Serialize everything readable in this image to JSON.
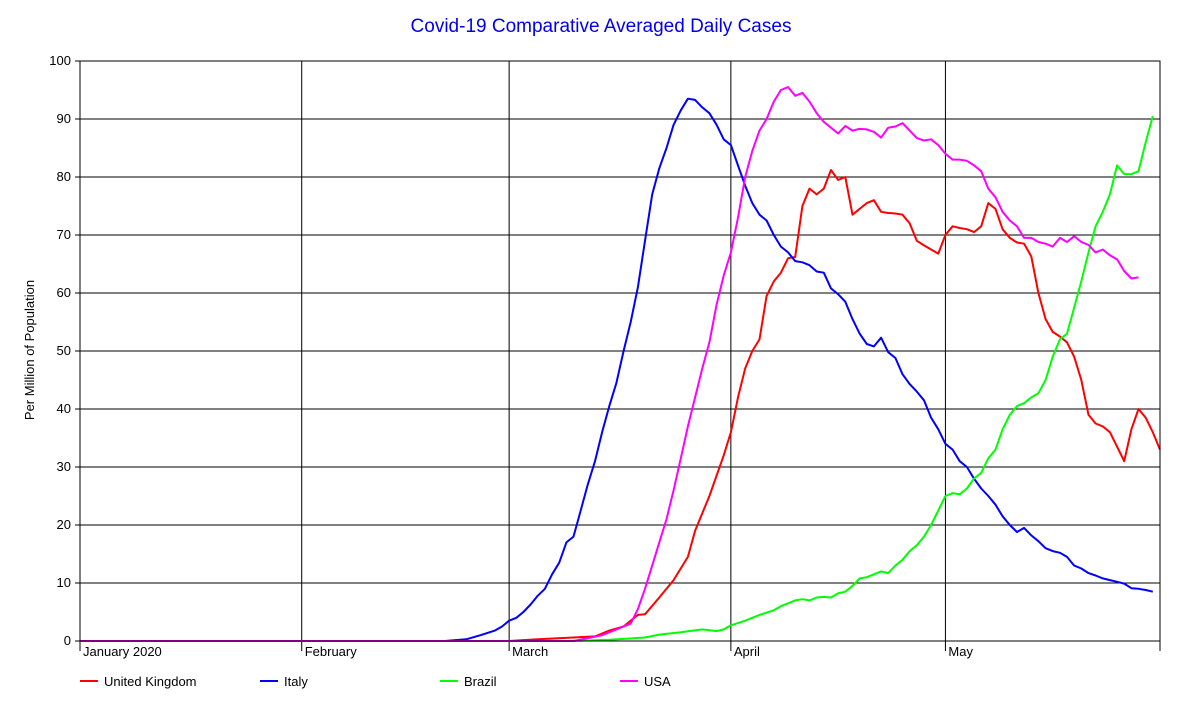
{
  "chart_data": {
    "type": "line",
    "title": "Covid-19 Comparative Averaged Daily Cases",
    "ylabel": "Per Million of Population",
    "xlabel": "",
    "ylim": [
      0,
      100
    ],
    "yticks": [
      0,
      10,
      20,
      30,
      40,
      50,
      60,
      70,
      80,
      90,
      100
    ],
    "x_axis": {
      "unit": "day",
      "start": "2020-01-01",
      "end": "2020-05-31",
      "month_labels": [
        {
          "label": "January 2020",
          "day": 1
        },
        {
          "label": "February",
          "day": 32
        },
        {
          "label": "March",
          "day": 61
        },
        {
          "label": "April",
          "day": 92
        },
        {
          "label": "May",
          "day": 122
        }
      ]
    },
    "grid": true,
    "legend_position": "bottom",
    "series": [
      {
        "name": "United Kingdom",
        "color": "#ff0000",
        "points": [
          [
            1,
            0
          ],
          [
            61,
            0
          ],
          [
            65,
            0.3
          ],
          [
            70,
            0.6
          ],
          [
            73,
            0.8
          ],
          [
            75,
            1.8
          ],
          [
            77,
            2.5
          ],
          [
            78,
            3.5
          ],
          [
            79,
            4.5
          ],
          [
            80,
            4.6
          ],
          [
            82,
            7.5
          ],
          [
            84,
            10.5
          ],
          [
            86,
            14.5
          ],
          [
            87,
            19
          ],
          [
            89,
            25
          ],
          [
            91,
            32
          ],
          [
            92,
            36
          ],
          [
            93,
            42
          ],
          [
            94,
            47
          ],
          [
            95,
            50
          ],
          [
            96,
            52
          ],
          [
            97,
            59.5
          ],
          [
            98,
            62
          ],
          [
            99,
            63.5
          ],
          [
            100,
            66
          ],
          [
            101,
            66.2
          ],
          [
            102,
            75
          ],
          [
            103,
            78
          ],
          [
            104,
            77
          ],
          [
            105,
            78
          ],
          [
            106,
            81.2
          ],
          [
            107,
            79.5
          ],
          [
            108,
            80
          ],
          [
            109,
            73.5
          ],
          [
            110,
            74.5
          ],
          [
            111,
            75.5
          ],
          [
            112,
            76
          ],
          [
            113,
            74
          ],
          [
            114,
            73.8
          ],
          [
            115,
            73.7
          ],
          [
            116,
            73.5
          ],
          [
            117,
            72
          ],
          [
            118,
            69
          ],
          [
            119,
            68.2
          ],
          [
            120,
            67.5
          ],
          [
            121,
            66.8
          ],
          [
            122,
            70
          ],
          [
            123,
            71.5
          ],
          [
            124,
            71.2
          ],
          [
            125,
            71
          ],
          [
            126,
            70.5
          ],
          [
            127,
            71.5
          ],
          [
            128,
            75.5
          ],
          [
            129,
            74.5
          ],
          [
            130,
            71
          ],
          [
            131,
            69.5
          ],
          [
            132,
            68.7
          ],
          [
            133,
            68.5
          ],
          [
            134,
            66.3
          ],
          [
            135,
            60
          ],
          [
            136,
            55.5
          ],
          [
            137,
            53.3
          ],
          [
            138,
            52.5
          ],
          [
            139,
            51.5
          ],
          [
            140,
            49
          ],
          [
            141,
            45
          ],
          [
            142,
            39
          ],
          [
            143,
            37.5
          ],
          [
            144,
            37
          ],
          [
            145,
            36
          ],
          [
            146,
            33.5
          ],
          [
            147,
            31
          ],
          [
            148,
            36.5
          ],
          [
            149,
            40
          ],
          [
            150,
            38.5
          ],
          [
            151,
            36
          ],
          [
            152,
            33
          ]
        ]
      },
      {
        "name": "Italy",
        "color": "#0000ff",
        "points": [
          [
            1,
            0
          ],
          [
            52,
            0
          ],
          [
            55,
            0.3
          ],
          [
            57,
            1
          ],
          [
            59,
            1.8
          ],
          [
            60,
            2.5
          ],
          [
            61,
            3.5
          ],
          [
            62,
            4
          ],
          [
            63,
            5
          ],
          [
            64,
            6.3
          ],
          [
            65,
            7.8
          ],
          [
            66,
            9
          ],
          [
            67,
            11.5
          ],
          [
            68,
            13.5
          ],
          [
            69,
            17
          ],
          [
            70,
            18
          ],
          [
            71,
            22.5
          ],
          [
            72,
            27
          ],
          [
            73,
            31
          ],
          [
            74,
            36
          ],
          [
            75,
            40.5
          ],
          [
            76,
            44.5
          ],
          [
            77,
            50
          ],
          [
            78,
            55
          ],
          [
            79,
            61
          ],
          [
            80,
            69
          ],
          [
            81,
            77
          ],
          [
            82,
            81.5
          ],
          [
            83,
            85
          ],
          [
            84,
            89
          ],
          [
            85,
            91.5
          ],
          [
            86,
            93.5
          ],
          [
            87,
            93.3
          ],
          [
            88,
            92
          ],
          [
            89,
            91
          ],
          [
            90,
            89
          ],
          [
            91,
            86.5
          ],
          [
            92,
            85.5
          ],
          [
            93,
            82
          ],
          [
            94,
            78.5
          ],
          [
            95,
            75.5
          ],
          [
            96,
            73.5
          ],
          [
            97,
            72.5
          ],
          [
            98,
            70
          ],
          [
            99,
            68
          ],
          [
            100,
            67
          ],
          [
            101,
            65.5
          ],
          [
            102,
            65.3
          ],
          [
            103,
            64.8
          ],
          [
            104,
            63.7
          ],
          [
            105,
            63.5
          ],
          [
            106,
            60.8
          ],
          [
            107,
            59.8
          ],
          [
            108,
            58.5
          ],
          [
            109,
            55.5
          ],
          [
            110,
            53
          ],
          [
            111,
            51.2
          ],
          [
            112,
            50.8
          ],
          [
            113,
            52.3
          ],
          [
            114,
            49.8
          ],
          [
            115,
            48.8
          ],
          [
            116,
            46
          ],
          [
            117,
            44.3
          ],
          [
            118,
            43
          ],
          [
            119,
            41.5
          ],
          [
            120,
            38.5
          ],
          [
            121,
            36.5
          ],
          [
            122,
            34
          ],
          [
            123,
            33
          ],
          [
            124,
            31
          ],
          [
            125,
            30
          ],
          [
            126,
            28
          ],
          [
            127,
            26.3
          ],
          [
            128,
            25
          ],
          [
            129,
            23.5
          ],
          [
            130,
            21.5
          ],
          [
            131,
            20
          ],
          [
            132,
            18.8
          ],
          [
            133,
            19.5
          ],
          [
            134,
            18.2
          ],
          [
            135,
            17.2
          ],
          [
            136,
            16
          ],
          [
            137,
            15.5
          ],
          [
            138,
            15.2
          ],
          [
            139,
            14.5
          ],
          [
            140,
            13
          ],
          [
            141,
            12.5
          ],
          [
            142,
            11.7
          ],
          [
            143,
            11.3
          ],
          [
            144,
            10.8
          ],
          [
            145,
            10.5
          ],
          [
            146,
            10.2
          ],
          [
            147,
            9.9
          ],
          [
            148,
            9.1
          ],
          [
            149,
            9
          ],
          [
            150,
            8.8
          ],
          [
            151,
            8.5
          ]
        ]
      },
      {
        "name": "Brazil",
        "color": "#00ff00",
        "points": [
          [
            1,
            0
          ],
          [
            70,
            0
          ],
          [
            75,
            0.2
          ],
          [
            80,
            0.6
          ],
          [
            82,
            1.1
          ],
          [
            85,
            1.5
          ],
          [
            88,
            2
          ],
          [
            90,
            1.7
          ],
          [
            91,
            2
          ],
          [
            92,
            2.7
          ],
          [
            94,
            3.5
          ],
          [
            96,
            4.5
          ],
          [
            98,
            5.3
          ],
          [
            99,
            6
          ],
          [
            100,
            6.5
          ],
          [
            101,
            7
          ],
          [
            102,
            7.2
          ],
          [
            103,
            7
          ],
          [
            104,
            7.5
          ],
          [
            105,
            7.6
          ],
          [
            106,
            7.5
          ],
          [
            107,
            8.2
          ],
          [
            108,
            8.5
          ],
          [
            109,
            9.5
          ],
          [
            110,
            10.8
          ],
          [
            111,
            11
          ],
          [
            112,
            11.5
          ],
          [
            113,
            12
          ],
          [
            114,
            11.7
          ],
          [
            115,
            13
          ],
          [
            116,
            14
          ],
          [
            117,
            15.5
          ],
          [
            118,
            16.5
          ],
          [
            119,
            18
          ],
          [
            120,
            20
          ],
          [
            121,
            22.5
          ],
          [
            122,
            25
          ],
          [
            123,
            25.5
          ],
          [
            124,
            25.3
          ],
          [
            125,
            26.3
          ],
          [
            126,
            28
          ],
          [
            127,
            29
          ],
          [
            128,
            31.5
          ],
          [
            129,
            33
          ],
          [
            130,
            36.5
          ],
          [
            131,
            39
          ],
          [
            132,
            40.5
          ],
          [
            133,
            41
          ],
          [
            134,
            42
          ],
          [
            135,
            42.7
          ],
          [
            136,
            45
          ],
          [
            137,
            49
          ],
          [
            138,
            52
          ],
          [
            139,
            53
          ],
          [
            140,
            57.5
          ],
          [
            141,
            62
          ],
          [
            142,
            67
          ],
          [
            143,
            71.5
          ],
          [
            144,
            74
          ],
          [
            145,
            77
          ],
          [
            146,
            82
          ],
          [
            147,
            80.5
          ],
          [
            148,
            80.5
          ],
          [
            149,
            81
          ],
          [
            150,
            86
          ],
          [
            151,
            90.5
          ]
        ]
      },
      {
        "name": "USA",
        "color": "#ff00ff",
        "points": [
          [
            1,
            0
          ],
          [
            70,
            0
          ],
          [
            72,
            0.5
          ],
          [
            74,
            1
          ],
          [
            76,
            2
          ],
          [
            78,
            3
          ],
          [
            79,
            5.5
          ],
          [
            80,
            9
          ],
          [
            81,
            13
          ],
          [
            82,
            17
          ],
          [
            83,
            21
          ],
          [
            84,
            26
          ],
          [
            85,
            31.5
          ],
          [
            86,
            37
          ],
          [
            87,
            42
          ],
          [
            88,
            47
          ],
          [
            89,
            51.5
          ],
          [
            90,
            58
          ],
          [
            91,
            63
          ],
          [
            92,
            67
          ],
          [
            93,
            73
          ],
          [
            94,
            80
          ],
          [
            95,
            84.5
          ],
          [
            96,
            88
          ],
          [
            97,
            90
          ],
          [
            98,
            93
          ],
          [
            99,
            95
          ],
          [
            100,
            95.5
          ],
          [
            101,
            94
          ],
          [
            102,
            94.5
          ],
          [
            103,
            93
          ],
          [
            104,
            91
          ],
          [
            105,
            89.5
          ],
          [
            106,
            88.5
          ],
          [
            107,
            87.5
          ],
          [
            108,
            88.8
          ],
          [
            109,
            88
          ],
          [
            110,
            88.3
          ],
          [
            111,
            88.2
          ],
          [
            112,
            87.8
          ],
          [
            113,
            86.8
          ],
          [
            114,
            88.5
          ],
          [
            115,
            88.7
          ],
          [
            116,
            89.3
          ],
          [
            117,
            88
          ],
          [
            118,
            86.7
          ],
          [
            119,
            86.3
          ],
          [
            120,
            86.5
          ],
          [
            121,
            85.5
          ],
          [
            122,
            84
          ],
          [
            123,
            83
          ],
          [
            124,
            83
          ],
          [
            125,
            82.8
          ],
          [
            126,
            82
          ],
          [
            127,
            81
          ],
          [
            128,
            78
          ],
          [
            129,
            76.5
          ],
          [
            130,
            74
          ],
          [
            131,
            72.5
          ],
          [
            132,
            71.5
          ],
          [
            133,
            69.5
          ],
          [
            134,
            69.5
          ],
          [
            135,
            68.8
          ],
          [
            136,
            68.5
          ],
          [
            137,
            68
          ],
          [
            138,
            69.5
          ],
          [
            139,
            68.8
          ],
          [
            140,
            69.8
          ],
          [
            141,
            68.8
          ],
          [
            142,
            68.3
          ],
          [
            143,
            67
          ],
          [
            144,
            67.5
          ],
          [
            145,
            66.5
          ],
          [
            146,
            65.8
          ],
          [
            147,
            63.8
          ],
          [
            148,
            62.5
          ],
          [
            149,
            62.7
          ]
        ]
      }
    ]
  }
}
